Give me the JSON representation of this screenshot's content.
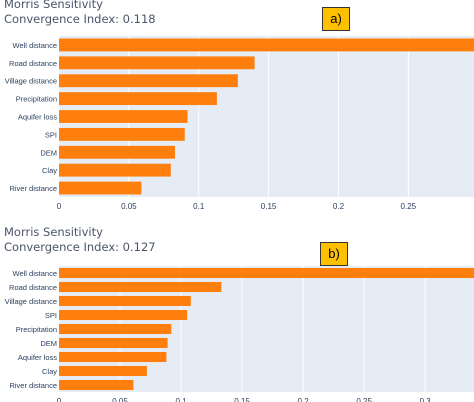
{
  "chart_data": [
    {
      "type": "bar",
      "orientation": "horizontal",
      "tag": "a)",
      "title": "Morris Sensitivity",
      "subtitle": "Convergence Index: 0.118",
      "categories": [
        "Well distance",
        "Road distance",
        "Village distance",
        "Precipitation",
        "Aquifer loss",
        "SPI",
        "DEM",
        "Clay",
        "River distance"
      ],
      "values": [
        0.297,
        0.14,
        0.128,
        0.113,
        0.092,
        0.09,
        0.083,
        0.08,
        0.059
      ],
      "xticks": [
        0,
        0.05,
        0.1,
        0.15,
        0.2,
        0.25
      ],
      "xlim": [
        0,
        0.297
      ],
      "bar_color": "#ff7f0e",
      "grid": true
    },
    {
      "type": "bar",
      "orientation": "horizontal",
      "tag": "b)",
      "title": "Morris Sensitivity",
      "subtitle": "Convergence Index: 0.127",
      "categories": [
        "Well distance",
        "Road distance",
        "Village distance",
        "SPI",
        "Precipitation",
        "DEM",
        "Aquifer loss",
        "Clay",
        "River distance"
      ],
      "values": [
        0.34,
        0.133,
        0.108,
        0.105,
        0.092,
        0.089,
        0.088,
        0.072,
        0.061
      ],
      "xticks": [
        0,
        0.05,
        0.1,
        0.15,
        0.2,
        0.25,
        0.3
      ],
      "xlim": [
        0,
        0.34
      ],
      "bar_color": "#ff7f0e",
      "grid": true
    }
  ]
}
